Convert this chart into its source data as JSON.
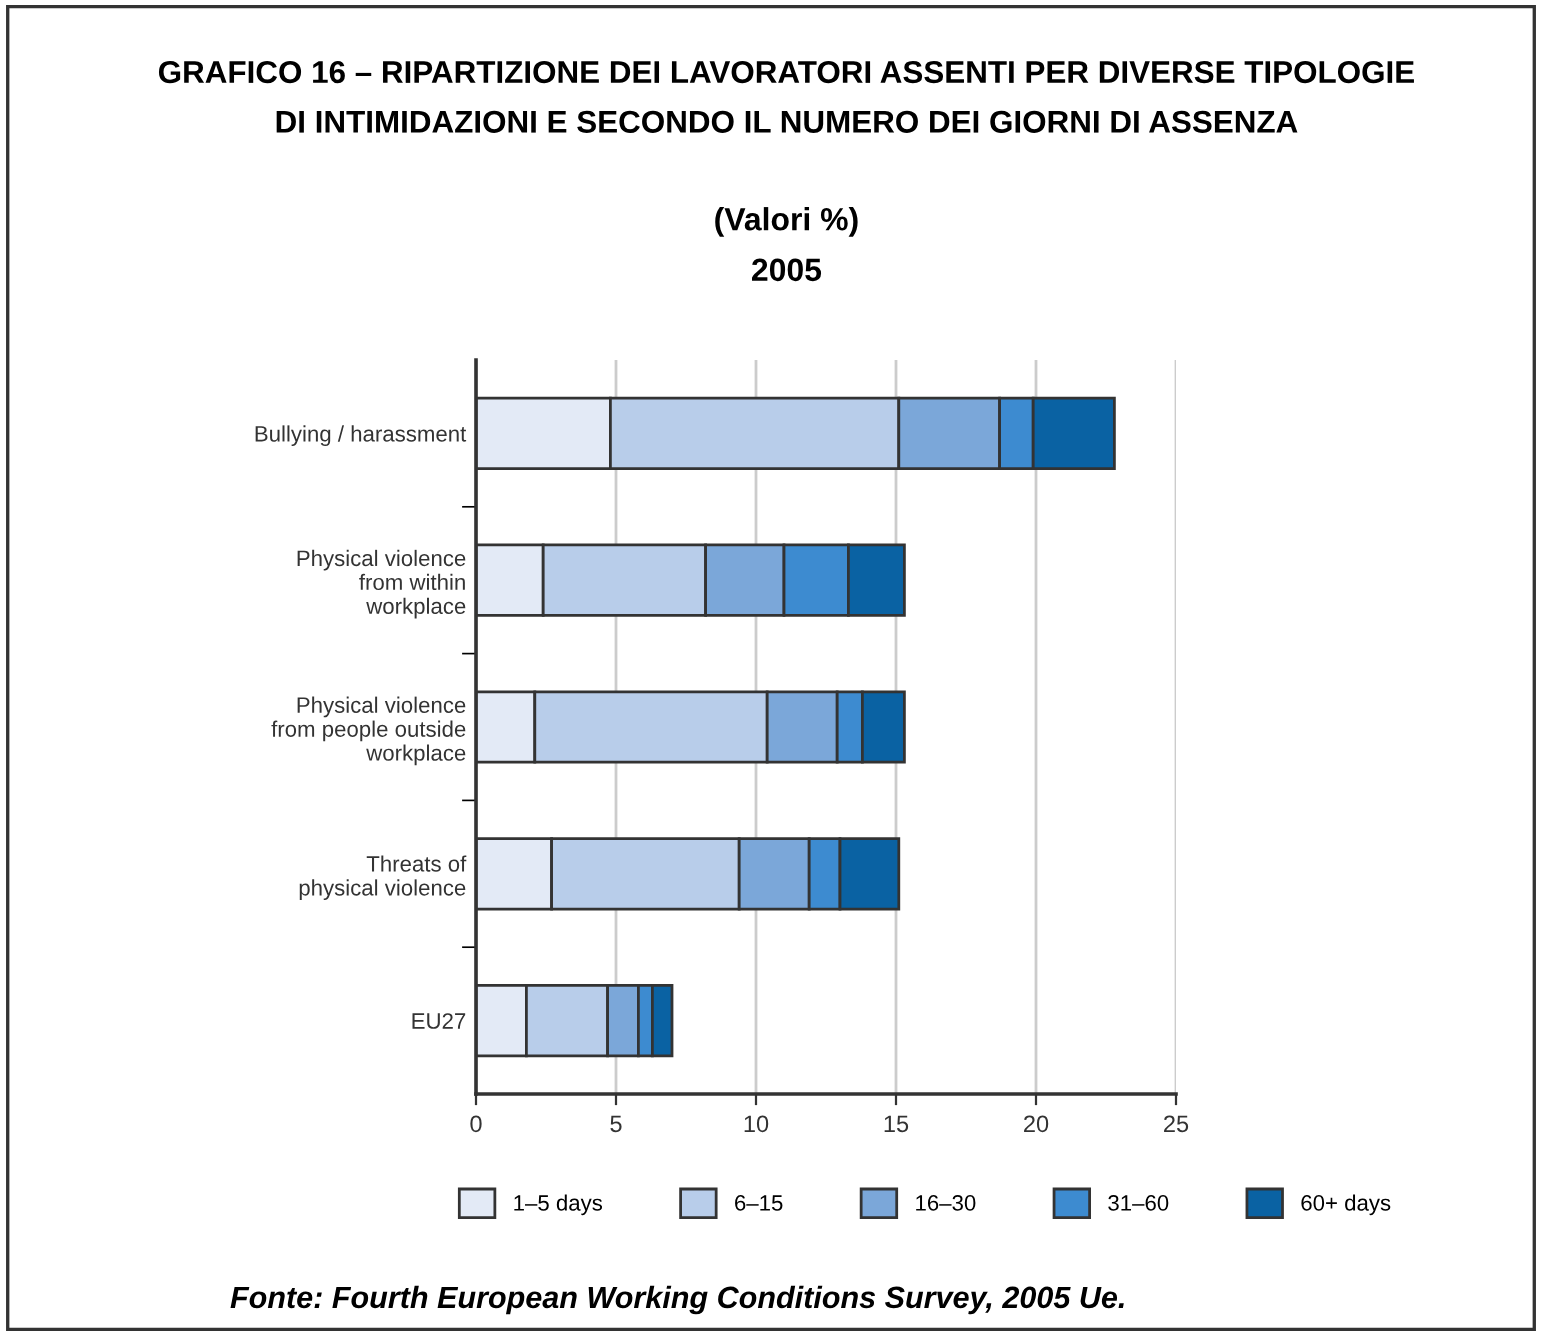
{
  "chart_data": {
    "type": "bar",
    "orientation": "horizontal",
    "stacked": true,
    "title": "GRAFICO 16 – RIPARTIZIONE DEI LAVORATORI ASSENTI PER DIVERSE TIPOLOGIE\nDI INTIMIDAZIONI E SECONDO IL NUMERO DEI GIORNI DI ASSENZA",
    "subtitle": "(Valori %)\n2005",
    "categories": [
      "Bullying / harassment",
      "Physical violence\nfrom within\nworkplace",
      "Physical violence\nfrom people outside\nworkplace",
      "Threats of\nphysical violence",
      "EU27"
    ],
    "series": [
      {
        "name": "1–5 days",
        "color": "#e3eaf6",
        "values": [
          4.8,
          2.4,
          2.1,
          2.7,
          1.8
        ]
      },
      {
        "name": "6–15",
        "color": "#b8cdea",
        "values": [
          10.3,
          5.8,
          8.3,
          6.7,
          2.9
        ]
      },
      {
        "name": "16–30",
        "color": "#7ba7d9",
        "values": [
          3.6,
          2.8,
          2.5,
          2.5,
          1.1
        ]
      },
      {
        "name": "31–60",
        "color": "#3d8bd0",
        "values": [
          1.2,
          2.3,
          0.9,
          1.1,
          0.5
        ]
      },
      {
        "name": "60+ days",
        "color": "#0a62a3",
        "values": [
          2.9,
          2.0,
          1.5,
          2.1,
          0.7
        ]
      }
    ],
    "xlim": [
      0,
      25
    ],
    "xticks": [
      0,
      5,
      10,
      15,
      20,
      25
    ],
    "grid": "x",
    "legend": "bottom",
    "annotations": [
      "Fonte: Fourth European Working Conditions Survey, 2005 Ue."
    ]
  }
}
